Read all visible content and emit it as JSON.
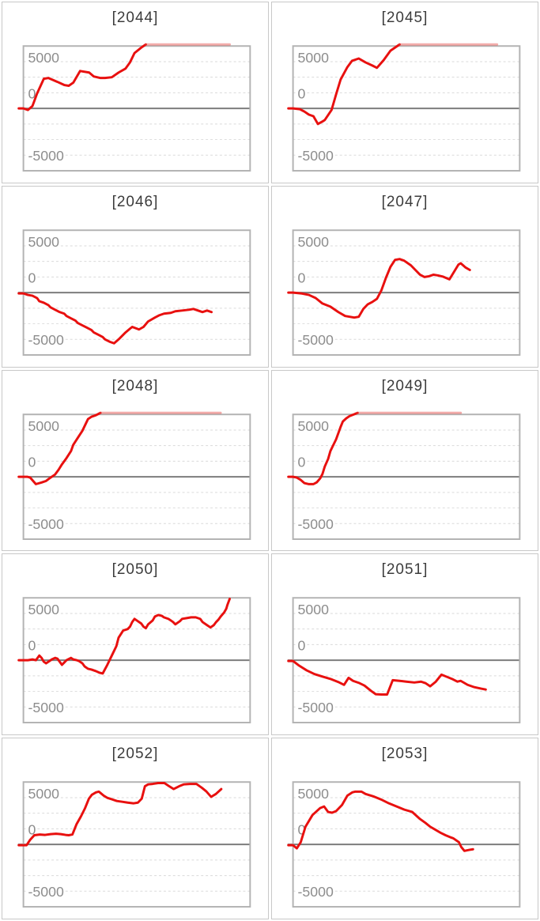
{
  "page_title": "slump-graph-list",
  "styles": {
    "line_red": "#e8100f",
    "line_red_clipped": "rgba(228,70,66,0.45)",
    "grid_line": "#dadada",
    "zero_line": "#7d7d7d",
    "plot_border": "#b3b3b3",
    "card_border": "#c8c8c8",
    "title_color": "#3c3c3c",
    "tick_color": "#8d8d8d"
  },
  "axis": {
    "yticks": [
      "5000",
      "0",
      "-5000"
    ],
    "ytick_values": [
      5000,
      0,
      -5000
    ],
    "ylim": [
      -6650,
      6650
    ],
    "xticks": [],
    "grid": "dashed-horizontal"
  },
  "chart_data": [
    {
      "type": "line",
      "title": "[2044]",
      "ylabel": "",
      "xlabel": "",
      "points": [
        [
          0,
          0
        ],
        [
          0.02,
          -170
        ],
        [
          0.04,
          250
        ],
        [
          0.06,
          1580
        ],
        [
          0.09,
          3170
        ],
        [
          0.11,
          3250
        ],
        [
          0.15,
          2830
        ],
        [
          0.18,
          2500
        ],
        [
          0.2,
          2420
        ],
        [
          0.22,
          2750
        ],
        [
          0.25,
          4000
        ],
        [
          0.29,
          3830
        ],
        [
          0.31,
          3420
        ],
        [
          0.34,
          3250
        ],
        [
          0.36,
          3250
        ],
        [
          0.39,
          3330
        ],
        [
          0.42,
          3830
        ],
        [
          0.45,
          4250
        ],
        [
          0.47,
          4920
        ],
        [
          0.49,
          5920
        ],
        [
          0.52,
          6500
        ],
        [
          0.54,
          6830
        ]
      ],
      "clip": {
        "from": 0.54,
        "to": 0.91,
        "value": 6830
      }
    },
    {
      "type": "line",
      "title": "[2045]",
      "ylabel": "",
      "xlabel": "",
      "points": [
        [
          0,
          0
        ],
        [
          0.03,
          -80
        ],
        [
          0.05,
          -330
        ],
        [
          0.07,
          -670
        ],
        [
          0.09,
          -830
        ],
        [
          0.11,
          -1670
        ],
        [
          0.13,
          -1400
        ],
        [
          0.14,
          -1250
        ],
        [
          0.17,
          -170
        ],
        [
          0.19,
          1500
        ],
        [
          0.21,
          3080
        ],
        [
          0.24,
          4420
        ],
        [
          0.26,
          5080
        ],
        [
          0.29,
          5330
        ],
        [
          0.32,
          4920
        ],
        [
          0.35,
          4580
        ],
        [
          0.37,
          4330
        ],
        [
          0.4,
          5170
        ],
        [
          0.43,
          6170
        ],
        [
          0.47,
          6830
        ]
      ],
      "clip": {
        "from": 0.47,
        "to": 0.9,
        "value": 6830
      }
    },
    {
      "type": "line",
      "title": "[2046]",
      "ylabel": "",
      "xlabel": "",
      "points": [
        [
          0,
          -80
        ],
        [
          0.02,
          -250
        ],
        [
          0.04,
          -330
        ],
        [
          0.06,
          -580
        ],
        [
          0.07,
          -920
        ],
        [
          0.09,
          -1080
        ],
        [
          0.11,
          -1330
        ],
        [
          0.12,
          -1580
        ],
        [
          0.14,
          -1830
        ],
        [
          0.16,
          -2080
        ],
        [
          0.18,
          -2250
        ],
        [
          0.19,
          -2500
        ],
        [
          0.21,
          -2750
        ],
        [
          0.23,
          -3000
        ],
        [
          0.24,
          -3250
        ],
        [
          0.26,
          -3500
        ],
        [
          0.28,
          -3750
        ],
        [
          0.3,
          -4000
        ],
        [
          0.31,
          -4250
        ],
        [
          0.33,
          -4500
        ],
        [
          0.35,
          -4750
        ],
        [
          0.36,
          -5000
        ],
        [
          0.38,
          -5250
        ],
        [
          0.4,
          -5420
        ],
        [
          0.42,
          -5000
        ],
        [
          0.45,
          -4270
        ],
        [
          0.47,
          -3860
        ],
        [
          0.48,
          -3670
        ],
        [
          0.51,
          -3940
        ],
        [
          0.53,
          -3670
        ],
        [
          0.55,
          -3080
        ],
        [
          0.58,
          -2670
        ],
        [
          0.6,
          -2420
        ],
        [
          0.62,
          -2250
        ],
        [
          0.65,
          -2170
        ],
        [
          0.67,
          -2000
        ],
        [
          0.7,
          -1920
        ],
        [
          0.73,
          -1830
        ],
        [
          0.75,
          -1750
        ],
        [
          0.77,
          -1920
        ],
        [
          0.79,
          -2080
        ],
        [
          0.81,
          -1920
        ],
        [
          0.83,
          -2080
        ]
      ],
      "clip": null
    },
    {
      "type": "line",
      "title": "[2047]",
      "ylabel": "",
      "xlabel": "",
      "points": [
        [
          0,
          0
        ],
        [
          0.035,
          -80
        ],
        [
          0.07,
          -250
        ],
        [
          0.1,
          -580
        ],
        [
          0.13,
          -1170
        ],
        [
          0.165,
          -1500
        ],
        [
          0.2,
          -2080
        ],
        [
          0.23,
          -2500
        ],
        [
          0.27,
          -2670
        ],
        [
          0.29,
          -2580
        ],
        [
          0.31,
          -1750
        ],
        [
          0.33,
          -1250
        ],
        [
          0.35,
          -1000
        ],
        [
          0.37,
          -670
        ],
        [
          0.39,
          250
        ],
        [
          0.41,
          1580
        ],
        [
          0.43,
          2750
        ],
        [
          0.45,
          3500
        ],
        [
          0.47,
          3580
        ],
        [
          0.49,
          3420
        ],
        [
          0.52,
          2920
        ],
        [
          0.54,
          2420
        ],
        [
          0.56,
          1920
        ],
        [
          0.58,
          1670
        ],
        [
          0.6,
          1750
        ],
        [
          0.62,
          1920
        ],
        [
          0.64,
          1830
        ],
        [
          0.66,
          1720
        ],
        [
          0.69,
          1420
        ],
        [
          0.73,
          3000
        ],
        [
          0.74,
          3130
        ],
        [
          0.76,
          2700
        ],
        [
          0.78,
          2420
        ]
      ],
      "clip": null
    },
    {
      "type": "line",
      "title": "[2048]",
      "ylabel": "",
      "xlabel": "",
      "points": [
        [
          0,
          0
        ],
        [
          0.017,
          0
        ],
        [
          0.03,
          -80
        ],
        [
          0.055,
          -780
        ],
        [
          0.08,
          -610
        ],
        [
          0.1,
          -440
        ],
        [
          0.12,
          -80
        ],
        [
          0.14,
          250
        ],
        [
          0.155,
          750
        ],
        [
          0.17,
          1330
        ],
        [
          0.19,
          2000
        ],
        [
          0.21,
          2750
        ],
        [
          0.22,
          3420
        ],
        [
          0.24,
          4170
        ],
        [
          0.26,
          4920
        ],
        [
          0.275,
          5670
        ],
        [
          0.285,
          6170
        ],
        [
          0.3,
          6420
        ],
        [
          0.32,
          6580
        ],
        [
          0.34,
          6830
        ]
      ],
      "clip": {
        "from": 0.34,
        "to": 0.87,
        "value": 6830
      }
    },
    {
      "type": "line",
      "title": "[2049]",
      "ylabel": "",
      "xlabel": "",
      "points": [
        [
          0,
          0
        ],
        [
          0.017,
          -80
        ],
        [
          0.034,
          -330
        ],
        [
          0.05,
          -670
        ],
        [
          0.07,
          -780
        ],
        [
          0.09,
          -780
        ],
        [
          0.105,
          -580
        ],
        [
          0.12,
          -170
        ],
        [
          0.13,
          300
        ],
        [
          0.14,
          1080
        ],
        [
          0.155,
          1920
        ],
        [
          0.165,
          2750
        ],
        [
          0.175,
          3250
        ],
        [
          0.19,
          4000
        ],
        [
          0.2,
          4670
        ],
        [
          0.21,
          5330
        ],
        [
          0.22,
          5920
        ],
        [
          0.235,
          6250
        ],
        [
          0.25,
          6500
        ],
        [
          0.27,
          6680
        ],
        [
          0.285,
          6830
        ]
      ],
      "clip": {
        "from": 0.285,
        "to": 0.74,
        "value": 6830
      }
    },
    {
      "type": "line",
      "title": "[2050]",
      "ylabel": "",
      "xlabel": "",
      "points": [
        [
          0,
          0
        ],
        [
          0.02,
          0
        ],
        [
          0.04,
          80
        ],
        [
          0.055,
          0
        ],
        [
          0.07,
          500
        ],
        [
          0.08,
          250
        ],
        [
          0.09,
          -170
        ],
        [
          0.1,
          -330
        ],
        [
          0.115,
          -80
        ],
        [
          0.125,
          80
        ],
        [
          0.14,
          250
        ],
        [
          0.15,
          170
        ],
        [
          0.16,
          -170
        ],
        [
          0.17,
          -500
        ],
        [
          0.18,
          -250
        ],
        [
          0.19,
          0
        ],
        [
          0.21,
          250
        ],
        [
          0.22,
          80
        ],
        [
          0.235,
          0
        ],
        [
          0.245,
          -80
        ],
        [
          0.26,
          -330
        ],
        [
          0.27,
          -670
        ],
        [
          0.285,
          -920
        ],
        [
          0.3,
          -1000
        ],
        [
          0.32,
          -1170
        ],
        [
          0.335,
          -1330
        ],
        [
          0.35,
          -1420
        ],
        [
          0.37,
          -500
        ],
        [
          0.39,
          500
        ],
        [
          0.41,
          1500
        ],
        [
          0.42,
          2420
        ],
        [
          0.44,
          3170
        ],
        [
          0.46,
          3330
        ],
        [
          0.47,
          3580
        ],
        [
          0.48,
          4080
        ],
        [
          0.49,
          4420
        ],
        [
          0.5,
          4250
        ],
        [
          0.52,
          3920
        ],
        [
          0.53,
          3580
        ],
        [
          0.54,
          3420
        ],
        [
          0.55,
          3830
        ],
        [
          0.57,
          4250
        ],
        [
          0.58,
          4670
        ],
        [
          0.595,
          4830
        ],
        [
          0.61,
          4750
        ],
        [
          0.62,
          4580
        ],
        [
          0.64,
          4420
        ],
        [
          0.65,
          4250
        ],
        [
          0.66,
          4080
        ],
        [
          0.67,
          3830
        ],
        [
          0.69,
          4170
        ],
        [
          0.7,
          4420
        ],
        [
          0.72,
          4500
        ],
        [
          0.74,
          4580
        ],
        [
          0.76,
          4580
        ],
        [
          0.78,
          4420
        ],
        [
          0.79,
          4080
        ],
        [
          0.81,
          3750
        ],
        [
          0.825,
          3500
        ],
        [
          0.84,
          3750
        ],
        [
          0.85,
          4080
        ],
        [
          0.86,
          4330
        ],
        [
          0.87,
          4670
        ],
        [
          0.885,
          5080
        ],
        [
          0.895,
          5500
        ],
        [
          0.9,
          5920
        ],
        [
          0.91,
          6560
        ]
      ],
      "clip": null
    },
    {
      "type": "line",
      "title": "[2051]",
      "ylabel": "",
      "xlabel": "",
      "points": [
        [
          0,
          -80
        ],
        [
          0.027,
          -580
        ],
        [
          0.06,
          -1080
        ],
        [
          0.095,
          -1480
        ],
        [
          0.13,
          -1750
        ],
        [
          0.165,
          -2000
        ],
        [
          0.2,
          -2330
        ],
        [
          0.225,
          -2630
        ],
        [
          0.245,
          -1880
        ],
        [
          0.265,
          -2210
        ],
        [
          0.29,
          -2420
        ],
        [
          0.315,
          -2710
        ],
        [
          0.345,
          -3290
        ],
        [
          0.365,
          -3630
        ],
        [
          0.39,
          -3670
        ],
        [
          0.415,
          -3670
        ],
        [
          0.44,
          -2130
        ],
        [
          0.47,
          -2210
        ],
        [
          0.5,
          -2290
        ],
        [
          0.535,
          -2380
        ],
        [
          0.565,
          -2290
        ],
        [
          0.585,
          -2460
        ],
        [
          0.605,
          -2790
        ],
        [
          0.63,
          -2290
        ],
        [
          0.655,
          -1540
        ],
        [
          0.68,
          -1790
        ],
        [
          0.705,
          -2040
        ],
        [
          0.725,
          -2290
        ],
        [
          0.74,
          -2210
        ],
        [
          0.77,
          -2630
        ],
        [
          0.8,
          -2880
        ],
        [
          0.83,
          -3040
        ],
        [
          0.85,
          -3130
        ]
      ],
      "clip": null
    },
    {
      "type": "line",
      "title": "[2052]",
      "ylabel": "",
      "xlabel": "",
      "points": [
        [
          0,
          -80
        ],
        [
          0.014,
          -80
        ],
        [
          0.03,
          500
        ],
        [
          0.048,
          980
        ],
        [
          0.072,
          1060
        ],
        [
          0.096,
          1020
        ],
        [
          0.12,
          1100
        ],
        [
          0.144,
          1140
        ],
        [
          0.165,
          1100
        ],
        [
          0.186,
          1020
        ],
        [
          0.2,
          980
        ],
        [
          0.216,
          1060
        ],
        [
          0.234,
          2140
        ],
        [
          0.254,
          3000
        ],
        [
          0.271,
          3830
        ],
        [
          0.289,
          4890
        ],
        [
          0.302,
          5310
        ],
        [
          0.32,
          5560
        ],
        [
          0.333,
          5640
        ],
        [
          0.354,
          5220
        ],
        [
          0.371,
          4970
        ],
        [
          0.392,
          4810
        ],
        [
          0.412,
          4640
        ],
        [
          0.436,
          4560
        ],
        [
          0.46,
          4470
        ],
        [
          0.485,
          4390
        ],
        [
          0.505,
          4470
        ],
        [
          0.522,
          4890
        ],
        [
          0.536,
          6220
        ],
        [
          0.55,
          6420
        ],
        [
          0.57,
          6470
        ],
        [
          0.594,
          6560
        ],
        [
          0.622,
          6560
        ],
        [
          0.643,
          6220
        ],
        [
          0.663,
          5920
        ],
        [
          0.687,
          6220
        ],
        [
          0.708,
          6420
        ],
        [
          0.735,
          6470
        ],
        [
          0.763,
          6470
        ],
        [
          0.787,
          6060
        ],
        [
          0.807,
          5670
        ],
        [
          0.828,
          5080
        ],
        [
          0.849,
          5390
        ],
        [
          0.873,
          5920
        ]
      ],
      "clip": null
    },
    {
      "type": "line",
      "title": "[2053]",
      "ylabel": "",
      "xlabel": "",
      "points": [
        [
          0,
          -80
        ],
        [
          0.017,
          -420
        ],
        [
          0.034,
          230
        ],
        [
          0.055,
          1890
        ],
        [
          0.086,
          3140
        ],
        [
          0.12,
          3890
        ],
        [
          0.137,
          4060
        ],
        [
          0.155,
          3470
        ],
        [
          0.172,
          3390
        ],
        [
          0.19,
          3560
        ],
        [
          0.216,
          4220
        ],
        [
          0.24,
          5220
        ],
        [
          0.261,
          5560
        ],
        [
          0.275,
          5640
        ],
        [
          0.302,
          5640
        ],
        [
          0.32,
          5390
        ],
        [
          0.354,
          5140
        ],
        [
          0.388,
          4810
        ],
        [
          0.423,
          4390
        ],
        [
          0.457,
          4060
        ],
        [
          0.491,
          3720
        ],
        [
          0.526,
          3470
        ],
        [
          0.56,
          2720
        ],
        [
          0.584,
          2310
        ],
        [
          0.605,
          1890
        ],
        [
          0.629,
          1560
        ],
        [
          0.653,
          1220
        ],
        [
          0.673,
          980
        ],
        [
          0.698,
          730
        ],
        [
          0.708,
          640
        ],
        [
          0.732,
          230
        ],
        [
          0.742,
          -270
        ],
        [
          0.756,
          -690
        ],
        [
          0.777,
          -580
        ],
        [
          0.794,
          -520
        ]
      ],
      "clip": null
    }
  ]
}
